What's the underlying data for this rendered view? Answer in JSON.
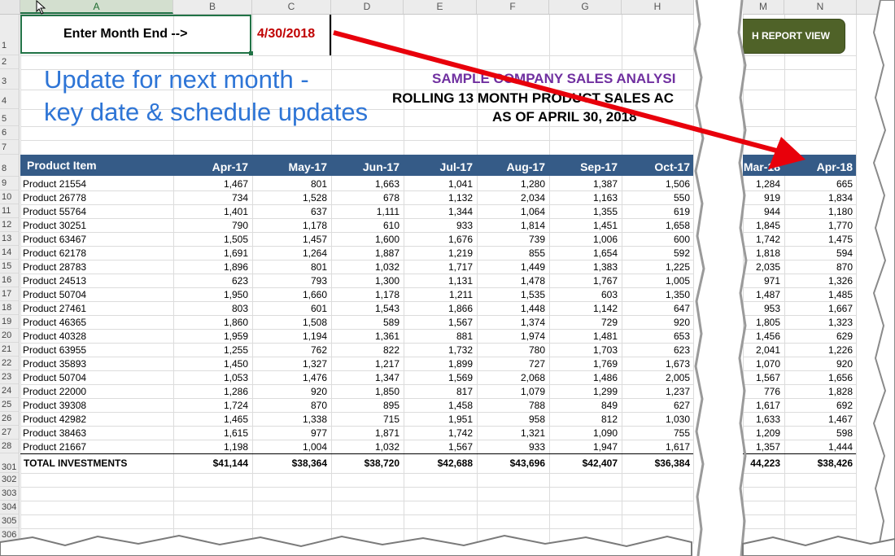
{
  "columns": [
    "A",
    "B",
    "C",
    "D",
    "E",
    "F",
    "G",
    "H",
    "M",
    "N"
  ],
  "top": {
    "prompt": "Enter Month End -->",
    "date": "4/30/2018",
    "button": "H REPORT VIEW"
  },
  "annotation": {
    "line1": "Update for next month -",
    "line2": "key date & schedule updates"
  },
  "titles": {
    "t1": "SAMPLE COMPANY SALES ANALYSI",
    "t2": "ROLLING 13 MONTH PRODUCT SALES AC",
    "t3": "AS OF APRIL 30, 2018"
  },
  "header": {
    "item": "Product Item",
    "months": [
      "Apr-17",
      "May-17",
      "Jun-17",
      "Jul-17",
      "Aug-17",
      "Sep-17",
      "Oct-17",
      "Mar-18",
      "Apr-18"
    ]
  },
  "rows": [
    {
      "n": "9",
      "p": "Product 21554",
      "v": [
        "1,467",
        "801",
        "1,663",
        "1,041",
        "1,280",
        "1,387",
        "1,506",
        "1,284",
        "665"
      ]
    },
    {
      "n": "10",
      "p": "Product 26778",
      "v": [
        "734",
        "1,528",
        "678",
        "1,132",
        "2,034",
        "1,163",
        "550",
        "919",
        "1,834"
      ]
    },
    {
      "n": "11",
      "p": "Product 55764",
      "v": [
        "1,401",
        "637",
        "1,111",
        "1,344",
        "1,064",
        "1,355",
        "619",
        "944",
        "1,180"
      ]
    },
    {
      "n": "12",
      "p": "Product 30251",
      "v": [
        "790",
        "1,178",
        "610",
        "933",
        "1,814",
        "1,451",
        "1,658",
        "1,845",
        "1,770"
      ]
    },
    {
      "n": "13",
      "p": "Product 63467",
      "v": [
        "1,505",
        "1,457",
        "1,600",
        "1,676",
        "739",
        "1,006",
        "600",
        "1,742",
        "1,475"
      ]
    },
    {
      "n": "14",
      "p": "Product 62178",
      "v": [
        "1,691",
        "1,264",
        "1,887",
        "1,219",
        "855",
        "1,654",
        "592",
        "1,818",
        "594"
      ]
    },
    {
      "n": "15",
      "p": "Product 28783",
      "v": [
        "1,896",
        "801",
        "1,032",
        "1,717",
        "1,449",
        "1,383",
        "1,225",
        "2,035",
        "870"
      ]
    },
    {
      "n": "16",
      "p": "Product 24513",
      "v": [
        "623",
        "793",
        "1,300",
        "1,131",
        "1,478",
        "1,767",
        "1,005",
        "971",
        "1,326"
      ]
    },
    {
      "n": "17",
      "p": "Product 50704",
      "v": [
        "1,950",
        "1,660",
        "1,178",
        "1,211",
        "1,535",
        "603",
        "1,350",
        "1,487",
        "1,485"
      ]
    },
    {
      "n": "18",
      "p": "Product 27461",
      "v": [
        "803",
        "601",
        "1,543",
        "1,866",
        "1,448",
        "1,142",
        "647",
        "953",
        "1,667"
      ]
    },
    {
      "n": "19",
      "p": "Product 46365",
      "v": [
        "1,860",
        "1,508",
        "589",
        "1,567",
        "1,374",
        "729",
        "920",
        "1,805",
        "1,323"
      ]
    },
    {
      "n": "20",
      "p": "Product 40328",
      "v": [
        "1,959",
        "1,194",
        "1,361",
        "881",
        "1,974",
        "1,481",
        "653",
        "1,456",
        "629"
      ]
    },
    {
      "n": "21",
      "p": "Product 63955",
      "v": [
        "1,255",
        "762",
        "822",
        "1,732",
        "780",
        "1,703",
        "623",
        "2,041",
        "1,226"
      ]
    },
    {
      "n": "22",
      "p": "Product 35893",
      "v": [
        "1,450",
        "1,327",
        "1,217",
        "1,899",
        "727",
        "1,769",
        "1,673",
        "1,070",
        "920"
      ]
    },
    {
      "n": "23",
      "p": "Product 50704",
      "v": [
        "1,053",
        "1,476",
        "1,347",
        "1,569",
        "2,068",
        "1,486",
        "2,005",
        "1,567",
        "1,656"
      ]
    },
    {
      "n": "24",
      "p": "Product 22000",
      "v": [
        "1,286",
        "920",
        "1,850",
        "817",
        "1,079",
        "1,299",
        "1,237",
        "776",
        "1,828"
      ]
    },
    {
      "n": "25",
      "p": "Product 39308",
      "v": [
        "1,724",
        "870",
        "895",
        "1,458",
        "788",
        "849",
        "627",
        "1,617",
        "692"
      ]
    },
    {
      "n": "26",
      "p": "Product 42982",
      "v": [
        "1,465",
        "1,338",
        "715",
        "1,951",
        "958",
        "812",
        "1,030",
        "1,633",
        "1,467"
      ]
    },
    {
      "n": "27",
      "p": "Product 38463",
      "v": [
        "1,615",
        "977",
        "1,871",
        "1,742",
        "1,321",
        "1,090",
        "755",
        "1,209",
        "598"
      ]
    },
    {
      "n": "28",
      "p": "Product 21667",
      "v": [
        "1,198",
        "1,004",
        "1,032",
        "1,567",
        "933",
        "1,947",
        "1,617",
        "1,357",
        "1,444"
      ]
    }
  ],
  "total": {
    "n": "301",
    "label": "TOTAL INVESTMENTS",
    "v": [
      "$41,144",
      "$38,364",
      "$38,720",
      "$42,688",
      "$43,696",
      "$42,407",
      "$36,384",
      "44,223",
      "$38,426"
    ]
  },
  "row_labels": {
    "r1": "1",
    "r2": "2",
    "r3": "3",
    "r4": "4",
    "r5": "5",
    "r6": "6",
    "r7": "7",
    "r8": "8",
    "e1": "302",
    "e2": "303",
    "e3": "304",
    "e4": "305",
    "e5": "306"
  },
  "colors": {
    "accent_band": "#355b87",
    "date_red": "#c00000",
    "annotation_blue": "#2e75d6",
    "title_purple": "#7030a0",
    "arrow_red": "#e8000b",
    "button_green": "#4f6228"
  }
}
